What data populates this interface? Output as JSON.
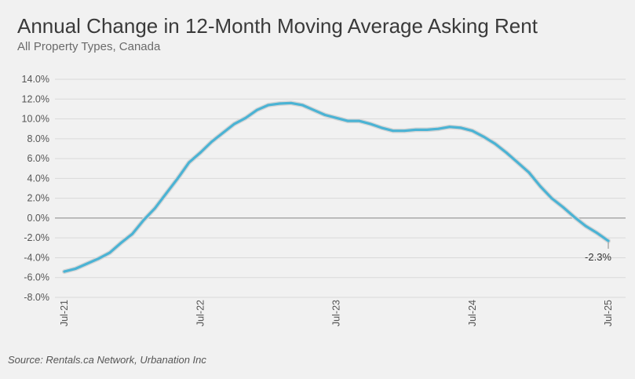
{
  "title": "Annual Change in 12-Month Moving Average Asking Rent",
  "subtitle": "All Property Types, Canada",
  "source": "Source: Rentals.ca Network, Urbanation Inc",
  "colors": {
    "line": "#4bb3d4",
    "background": "#f1f1f1",
    "grid": "#d9d9d9",
    "zero_line": "#9a9a9a"
  },
  "chart_data": {
    "type": "line",
    "title": "Annual Change in 12-Month Moving Average Asking Rent",
    "subtitle": "All Property Types, Canada",
    "xlabel": "",
    "ylabel": "",
    "ylim": [
      -8,
      14
    ],
    "y_ticks": [
      14,
      12,
      10,
      8,
      6,
      4,
      2,
      0,
      -2,
      -4,
      -6,
      -8
    ],
    "y_tick_labels": [
      "14.0%",
      "12.0%",
      "10.0%",
      "8.0%",
      "6.0%",
      "4.0%",
      "2.0%",
      "0.0%",
      "-2.0%",
      "-4.0%",
      "-6.0%",
      "-8.0%"
    ],
    "x_tick_labels": [
      "Jul-21",
      "Jul-22",
      "Jul-23",
      "Jul-24",
      "Jul-25"
    ],
    "grid": true,
    "legend": "none",
    "x": [
      "2021-07",
      "2021-08",
      "2021-09",
      "2021-10",
      "2021-11",
      "2021-12",
      "2022-01",
      "2022-02",
      "2022-03",
      "2022-04",
      "2022-05",
      "2022-06",
      "2022-07",
      "2022-08",
      "2022-09",
      "2022-10",
      "2022-11",
      "2022-12",
      "2023-01",
      "2023-02",
      "2023-03",
      "2023-04",
      "2023-05",
      "2023-06",
      "2023-07",
      "2023-08",
      "2023-09",
      "2023-10",
      "2023-11",
      "2023-12",
      "2024-01",
      "2024-02",
      "2024-03",
      "2024-04",
      "2024-05",
      "2024-06",
      "2024-07",
      "2024-08",
      "2024-09",
      "2024-10",
      "2024-11",
      "2024-12",
      "2025-01",
      "2025-02",
      "2025-03",
      "2025-04",
      "2025-05",
      "2025-06",
      "2025-07"
    ],
    "series": [
      {
        "values": [
          -5.4,
          -5.1,
          -4.6,
          -4.1,
          -3.5,
          -2.5,
          -1.6,
          -0.2,
          1.0,
          2.5,
          4.0,
          5.6,
          6.6,
          7.7,
          8.6,
          9.5,
          10.1,
          10.9,
          11.4,
          11.55,
          11.6,
          11.4,
          10.9,
          10.4,
          10.1,
          9.8,
          9.8,
          9.5,
          9.1,
          8.8,
          8.8,
          8.9,
          8.9,
          9.0,
          9.2,
          9.1,
          8.8,
          8.2,
          7.5,
          6.6,
          5.6,
          4.6,
          3.2,
          2.0,
          1.1,
          0.1,
          -0.8,
          -1.5,
          -2.3
        ]
      }
    ],
    "annotations": [
      {
        "x": "2025-07",
        "y": -2.3,
        "text": "-2.3%"
      }
    ]
  }
}
